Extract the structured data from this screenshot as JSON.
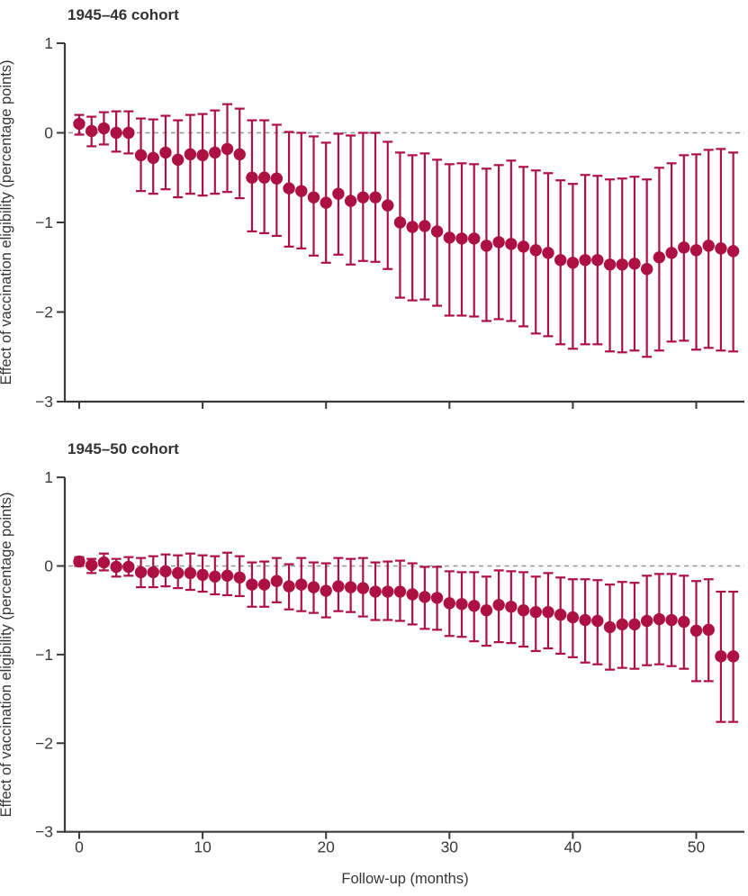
{
  "colors": {
    "marker": "#AD1043",
    "error_bar": "#AD1043",
    "zero_line": "#8D9997",
    "axis": "#3A3A3A"
  },
  "chart_data": [
    {
      "type": "scatter",
      "title": "1945–46 cohort",
      "ylabel": "Effect of vaccination eligibility (percentage points)",
      "xlabel": "",
      "ylim": [
        -3,
        1
      ],
      "xlim": [
        -1,
        54
      ],
      "yticks": [
        1,
        0,
        -1,
        -2,
        -3
      ],
      "xticks": [
        0,
        10,
        20,
        30,
        40,
        50
      ],
      "zero_line": true,
      "grid": false,
      "legend": "none",
      "x": [
        0,
        1,
        2,
        3,
        4,
        5,
        6,
        7,
        8,
        9,
        10,
        11,
        12,
        13,
        14,
        15,
        16,
        17,
        18,
        19,
        20,
        21,
        22,
        23,
        24,
        25,
        26,
        27,
        28,
        29,
        30,
        31,
        32,
        33,
        34,
        35,
        36,
        37,
        38,
        39,
        40,
        41,
        42,
        43,
        44,
        45,
        46,
        47,
        48,
        49,
        50,
        51,
        52,
        53
      ],
      "points": [
        0.1,
        0.02,
        0.05,
        0.0,
        0.0,
        -0.25,
        -0.28,
        -0.22,
        -0.3,
        -0.24,
        -0.25,
        -0.22,
        -0.18,
        -0.24,
        -0.5,
        -0.5,
        -0.51,
        -0.62,
        -0.65,
        -0.72,
        -0.78,
        -0.68,
        -0.76,
        -0.72,
        -0.72,
        -0.81,
        -1.0,
        -1.05,
        -1.04,
        -1.1,
        -1.17,
        -1.18,
        -1.18,
        -1.26,
        -1.22,
        -1.24,
        -1.27,
        -1.31,
        -1.34,
        -1.42,
        -1.45,
        -1.42,
        -1.42,
        -1.47,
        -1.47,
        -1.46,
        -1.52,
        -1.39,
        -1.34,
        -1.28,
        -1.31,
        -1.26,
        -1.29,
        -1.32
      ],
      "ci_low": [
        -0.02,
        -0.15,
        -0.13,
        -0.21,
        -0.23,
        -0.65,
        -0.68,
        -0.63,
        -0.72,
        -0.68,
        -0.7,
        -0.68,
        -0.66,
        -0.73,
        -1.1,
        -1.12,
        -1.15,
        -1.27,
        -1.29,
        -1.37,
        -1.45,
        -1.36,
        -1.47,
        -1.43,
        -1.44,
        -1.52,
        -1.84,
        -1.87,
        -1.86,
        -1.93,
        -2.04,
        -2.04,
        -2.05,
        -2.1,
        -2.08,
        -2.1,
        -2.16,
        -2.24,
        -2.27,
        -2.36,
        -2.41,
        -2.36,
        -2.36,
        -2.44,
        -2.45,
        -2.43,
        -2.5,
        -2.43,
        -2.33,
        -2.32,
        -2.42,
        -2.4,
        -2.43,
        -2.44
      ],
      "ci_high": [
        0.2,
        0.18,
        0.23,
        0.24,
        0.24,
        0.16,
        0.15,
        0.19,
        0.14,
        0.2,
        0.21,
        0.25,
        0.32,
        0.27,
        0.14,
        0.14,
        0.09,
        0.01,
        0.0,
        -0.04,
        -0.11,
        -0.01,
        -0.03,
        0.0,
        0.0,
        -0.1,
        -0.22,
        -0.25,
        -0.23,
        -0.3,
        -0.35,
        -0.34,
        -0.35,
        -0.4,
        -0.36,
        -0.31,
        -0.38,
        -0.42,
        -0.45,
        -0.53,
        -0.57,
        -0.47,
        -0.48,
        -0.52,
        -0.51,
        -0.49,
        -0.52,
        -0.39,
        -0.34,
        -0.25,
        -0.24,
        -0.19,
        -0.18,
        -0.22
      ]
    },
    {
      "type": "scatter",
      "title": "1945–50 cohort",
      "ylabel": "Effect of vaccination eligibility (percentage points)",
      "xlabel": "Follow-up (months)",
      "ylim": [
        -3,
        1
      ],
      "xlim": [
        -1,
        54
      ],
      "yticks": [
        1,
        0,
        -1,
        -2,
        -3
      ],
      "xticks": [
        0,
        10,
        20,
        30,
        40,
        50
      ],
      "zero_line": true,
      "grid": false,
      "legend": "none",
      "x": [
        0,
        1,
        2,
        3,
        4,
        5,
        6,
        7,
        8,
        9,
        10,
        11,
        12,
        13,
        14,
        15,
        16,
        17,
        18,
        19,
        20,
        21,
        22,
        23,
        24,
        25,
        26,
        27,
        28,
        29,
        30,
        31,
        32,
        33,
        34,
        35,
        36,
        37,
        38,
        39,
        40,
        41,
        42,
        43,
        44,
        45,
        46,
        47,
        48,
        49,
        50,
        51,
        52,
        53
      ],
      "points": [
        0.05,
        0.01,
        0.04,
        -0.01,
        -0.01,
        -0.07,
        -0.07,
        -0.06,
        -0.08,
        -0.08,
        -0.1,
        -0.12,
        -0.11,
        -0.13,
        -0.21,
        -0.21,
        -0.17,
        -0.23,
        -0.21,
        -0.24,
        -0.28,
        -0.23,
        -0.24,
        -0.25,
        -0.29,
        -0.29,
        -0.29,
        -0.32,
        -0.35,
        -0.36,
        -0.42,
        -0.43,
        -0.45,
        -0.5,
        -0.44,
        -0.46,
        -0.5,
        -0.52,
        -0.52,
        -0.55,
        -0.58,
        -0.61,
        -0.62,
        -0.69,
        -0.66,
        -0.66,
        -0.62,
        -0.6,
        -0.61,
        -0.63,
        -0.73,
        -0.72,
        -1.02,
        -1.02
      ],
      "ci_low": [
        0.0,
        -0.08,
        -0.05,
        -0.12,
        -0.11,
        -0.24,
        -0.24,
        -0.23,
        -0.25,
        -0.27,
        -0.29,
        -0.32,
        -0.33,
        -0.34,
        -0.46,
        -0.46,
        -0.41,
        -0.49,
        -0.51,
        -0.53,
        -0.58,
        -0.51,
        -0.52,
        -0.57,
        -0.61,
        -0.61,
        -0.62,
        -0.66,
        -0.71,
        -0.72,
        -0.79,
        -0.8,
        -0.85,
        -0.9,
        -0.86,
        -0.87,
        -0.91,
        -0.96,
        -0.93,
        -0.99,
        -1.03,
        -1.09,
        -1.11,
        -1.17,
        -1.15,
        -1.16,
        -1.12,
        -1.11,
        -1.13,
        -1.16,
        -1.3,
        -1.3,
        -1.76,
        -1.76
      ],
      "ci_high": [
        0.1,
        0.08,
        0.14,
        0.08,
        0.1,
        0.09,
        0.11,
        0.13,
        0.12,
        0.14,
        0.12,
        0.11,
        0.15,
        0.11,
        0.04,
        0.05,
        0.09,
        0.02,
        0.09,
        0.04,
        0.03,
        0.09,
        0.08,
        0.09,
        0.04,
        0.05,
        0.06,
        0.03,
        -0.01,
        -0.01,
        -0.06,
        -0.07,
        -0.07,
        -0.12,
        -0.05,
        -0.06,
        -0.07,
        -0.12,
        -0.08,
        -0.13,
        -0.15,
        -0.15,
        -0.16,
        -0.21,
        -0.18,
        -0.19,
        -0.11,
        -0.09,
        -0.09,
        -0.11,
        -0.17,
        -0.15,
        -0.29,
        -0.29
      ]
    }
  ]
}
